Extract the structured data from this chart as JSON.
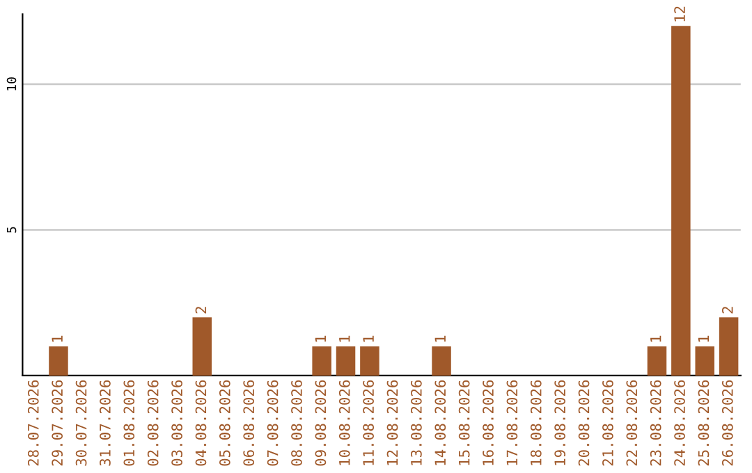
{
  "chart_data": {
    "type": "bar",
    "categories": [
      "28.07.2026",
      "29.07.2026",
      "30.07.2026",
      "31.07.2026",
      "01.08.2026",
      "02.08.2026",
      "03.08.2026",
      "04.08.2026",
      "05.08.2026",
      "06.08.2026",
      "07.08.2026",
      "08.08.2026",
      "09.08.2026",
      "10.08.2026",
      "11.08.2026",
      "12.08.2026",
      "13.08.2026",
      "14.08.2026",
      "15.08.2026",
      "16.08.2026",
      "17.08.2026",
      "18.08.2026",
      "19.08.2026",
      "20.08.2026",
      "21.08.2026",
      "22.08.2026",
      "23.08.2026",
      "24.08.2026",
      "25.08.2026",
      "26.08.2026"
    ],
    "values": [
      0,
      1,
      0,
      0,
      0,
      0,
      0,
      2,
      0,
      0,
      0,
      0,
      1,
      1,
      1,
      0,
      0,
      1,
      0,
      0,
      0,
      0,
      0,
      0,
      0,
      0,
      1,
      12,
      1,
      2
    ],
    "value_labels": [
      null,
      "1",
      null,
      null,
      null,
      null,
      null,
      "2",
      null,
      null,
      null,
      null,
      "1",
      "1",
      "1",
      null,
      null,
      "1",
      null,
      null,
      null,
      null,
      null,
      null,
      null,
      null,
      "1",
      "12",
      "1",
      "2"
    ],
    "color": "#a0592a",
    "ylim": [
      0,
      12.4
    ],
    "yticks": [
      5,
      10
    ],
    "grid": "y",
    "legend": false
  }
}
